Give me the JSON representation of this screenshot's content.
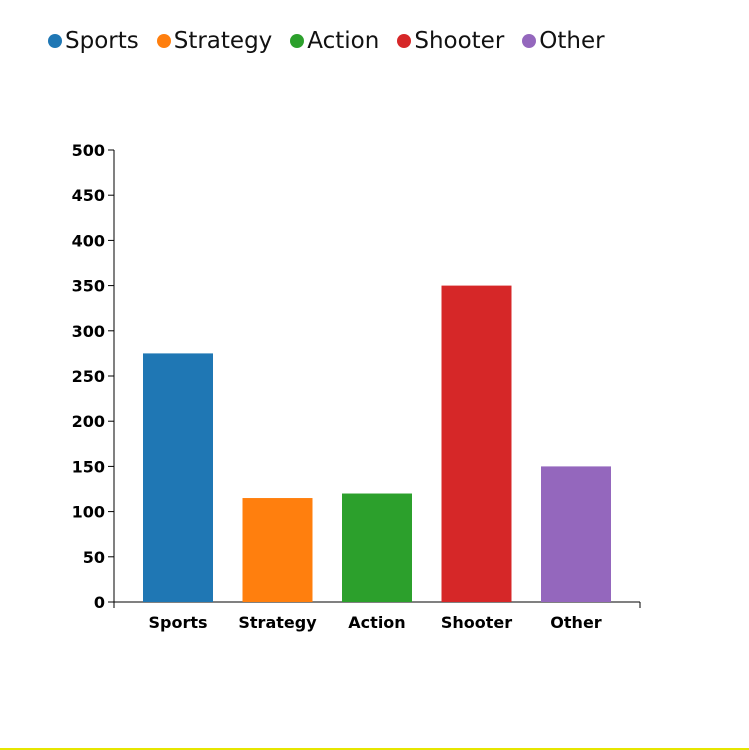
{
  "chart_data": {
    "type": "bar",
    "categories": [
      "Sports",
      "Strategy",
      "Action",
      "Shooter",
      "Other"
    ],
    "values": [
      275,
      115,
      120,
      350,
      150
    ],
    "colors": [
      "#1f77b4",
      "#ff7f0e",
      "#2ca02c",
      "#d62728",
      "#9467bd"
    ],
    "ylim": [
      0,
      500
    ],
    "yticks": [
      0,
      50,
      100,
      150,
      200,
      250,
      300,
      350,
      400,
      450,
      500
    ],
    "title": "",
    "xlabel": "",
    "ylabel": "",
    "legend": {
      "position": "top-left",
      "entries": [
        "Sports",
        "Strategy",
        "Action",
        "Shooter",
        "Other"
      ]
    },
    "grid": false
  }
}
